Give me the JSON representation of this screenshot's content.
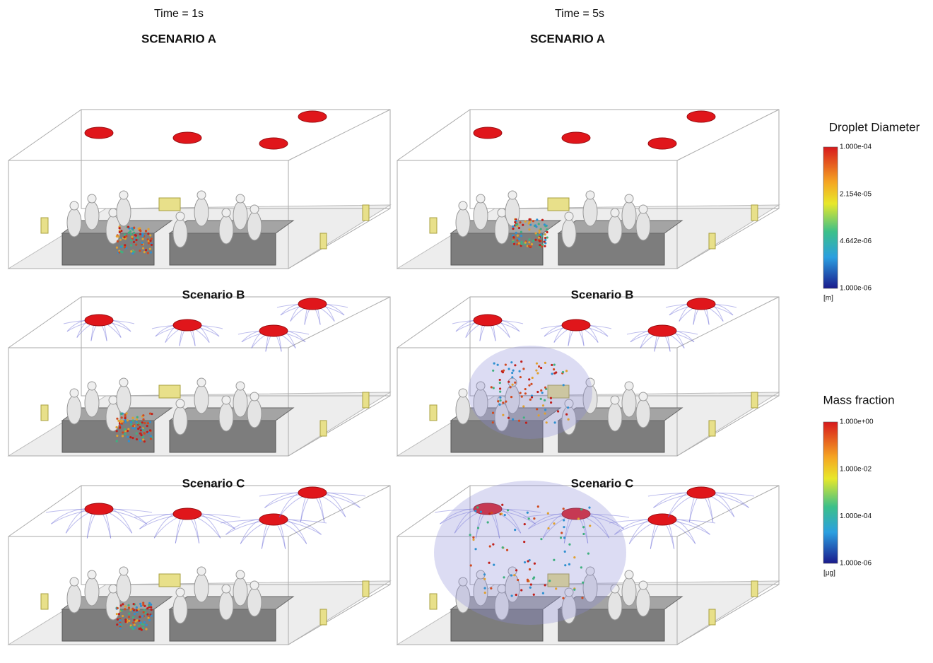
{
  "columns": [
    {
      "time": "Time = 1s",
      "panels": [
        {
          "label": "SCENARIO A"
        },
        {
          "label": "Scenario B"
        },
        {
          "label": "Scenario C"
        }
      ]
    },
    {
      "time": "Time = 5s",
      "panels": [
        {
          "label": "SCENARIO A"
        },
        {
          "label": "Scenario B"
        },
        {
          "label": "Scenario C"
        }
      ]
    }
  ],
  "colorbars": [
    {
      "title": "Droplet Diameter",
      "ticks": [
        "1.000e-04",
        "2.154e-05",
        "4.642e-06",
        "1.000e-06"
      ],
      "unit": "[m]"
    },
    {
      "title": "Mass fraction",
      "ticks": [
        "1.000e+00",
        "1.000e-02",
        "1.000e-04",
        "1.000e-06"
      ],
      "unit": "[μg]"
    }
  ]
}
